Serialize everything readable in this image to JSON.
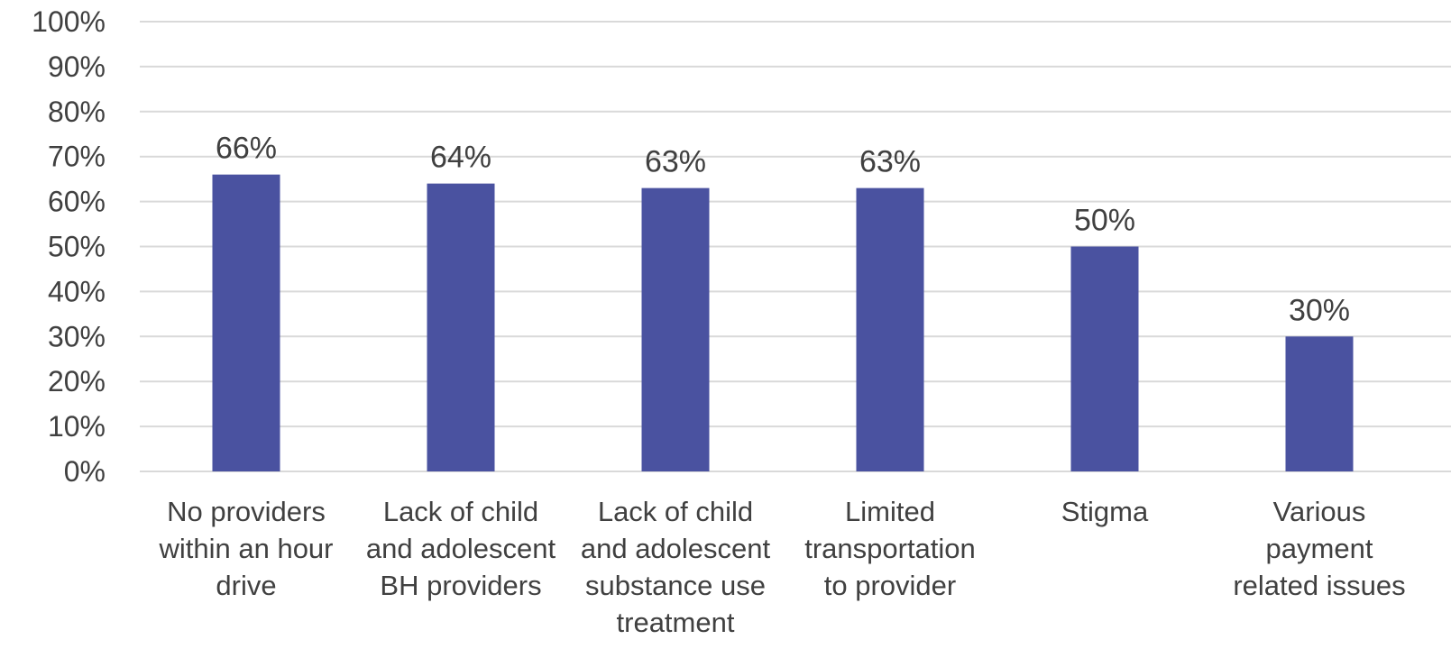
{
  "chart_data": {
    "type": "bar",
    "title": "",
    "xlabel": "",
    "ylabel": "",
    "ylim": [
      0,
      100
    ],
    "y_ticks": [
      "0%",
      "10%",
      "20%",
      "30%",
      "40%",
      "50%",
      "60%",
      "70%",
      "80%",
      "90%",
      "100%"
    ],
    "grid": true,
    "legend": "none",
    "bar_color": "#4a52a0",
    "categories": [
      [
        "No providers",
        "within an hour",
        "drive"
      ],
      [
        "Lack of child",
        "and adolescent",
        "BH providers"
      ],
      [
        "Lack of child",
        "and adolescent",
        "substance use",
        "treatment"
      ],
      [
        "Limited",
        "transportation",
        "to provider"
      ],
      [
        "Stigma"
      ],
      [
        "Various",
        "payment",
        "related issues"
      ]
    ],
    "values": [
      66,
      64,
      63,
      63,
      50,
      30
    ],
    "data_labels": [
      "66%",
      "64%",
      "63%",
      "63%",
      "50%",
      "30%"
    ]
  }
}
